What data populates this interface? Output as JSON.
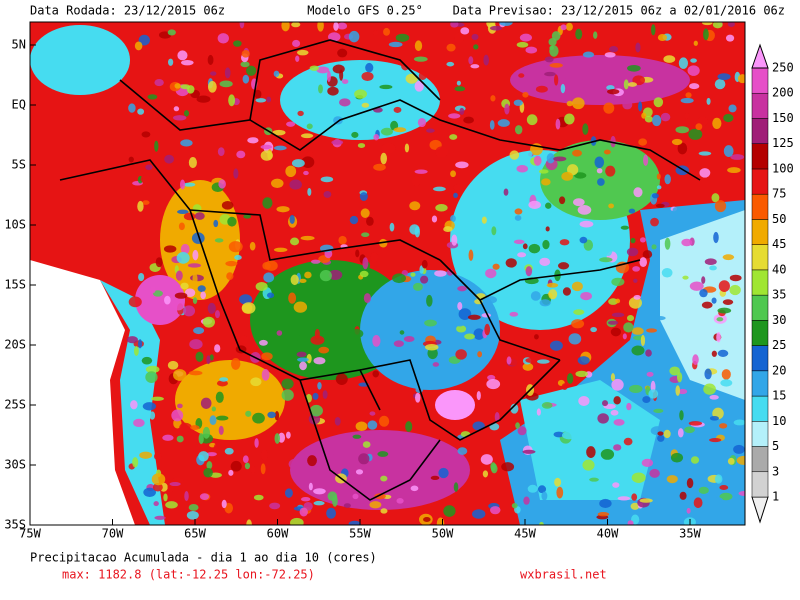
{
  "header": {
    "left": "Data Rodada: 23/12/2015 06z",
    "center": "Modelo GFS 0.25°",
    "right": "Data Previsao: 23/12/2015 06z a 02/01/2016 06z"
  },
  "map": {
    "lat_labels": [
      "5N",
      "EQ",
      "5S",
      "10S",
      "15S",
      "20S",
      "25S",
      "30S",
      "35S"
    ],
    "lon_labels": [
      "75W",
      "70W",
      "65W",
      "60W",
      "55W",
      "50W",
      "45W",
      "40W",
      "35W"
    ]
  },
  "colorbar": {
    "levels": [
      1,
      3,
      5,
      10,
      15,
      20,
      25,
      30,
      35,
      40,
      45,
      50,
      75,
      100,
      125,
      150,
      200,
      250
    ],
    "colors": [
      "#f0f0f0",
      "#d2d2d2",
      "#aaaaaa",
      "#b4f0fa",
      "#46dcf0",
      "#32a6e8",
      "#1464d2",
      "#1e961e",
      "#50c850",
      "#a0e632",
      "#e6dc32",
      "#f0aa00",
      "#fa5a00",
      "#e61414",
      "#b40000",
      "#a01e78",
      "#c832a0",
      "#e650c8",
      "#fa96fa"
    ]
  },
  "footer": {
    "title": "Precipitacao Acumulada - dia 1 ao dia 10 (cores)",
    "max": "max: 1182.8 (lat:-12.25 lon:-72.25)",
    "site": "wxbrasil.net"
  }
}
